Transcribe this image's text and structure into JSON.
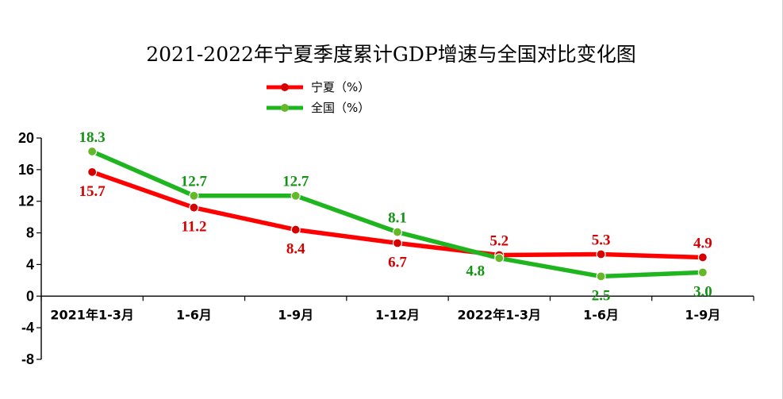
{
  "chart_data": {
    "type": "line",
    "title": "2021-2022年宁夏季度累计GDP增速与全国对比变化图",
    "categories": [
      "2021年1-3月",
      "1-6月",
      "1-9月",
      "1-12月",
      "2022年1-3月",
      "1-6月",
      "1-9月"
    ],
    "series": [
      {
        "name": "宁夏（%）",
        "color": "#ff0000",
        "marker_color": "#d60000",
        "values": [
          15.7,
          11.2,
          8.4,
          6.7,
          5.2,
          5.3,
          4.9
        ],
        "labels": [
          "15.7",
          "11.2",
          "8.4",
          "6.7",
          "5.2",
          "5.3",
          "4.9"
        ],
        "label_positions": [
          "below",
          "below",
          "below",
          "below",
          "above",
          "above",
          "above"
        ]
      },
      {
        "name": "全国（%）",
        "color": "#1fb51f",
        "marker_color": "#66b82a",
        "values": [
          18.3,
          12.7,
          12.7,
          8.1,
          4.8,
          2.5,
          3.0
        ],
        "labels": [
          "18.3",
          "12.7",
          "12.7",
          "8.1",
          "4.8",
          "2.5",
          "3.0"
        ],
        "label_positions": [
          "above",
          "above",
          "above",
          "above",
          "below-left",
          "below",
          "below"
        ]
      }
    ],
    "yticks": [
      "20",
      "16",
      "12",
      "8",
      "4",
      "0",
      "-4",
      "-8"
    ],
    "ylim": [
      -8,
      20
    ],
    "xlabel": "",
    "ylabel": "",
    "legend_position": "top-center",
    "grid": false
  }
}
